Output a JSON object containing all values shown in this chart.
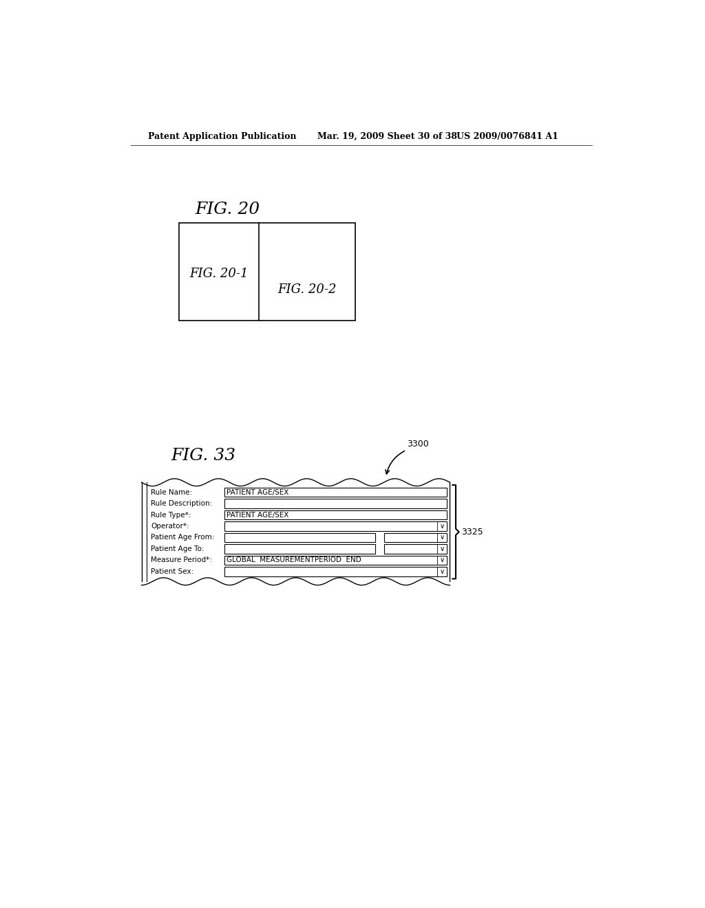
{
  "bg_color": "#ffffff",
  "header_left": "Patent Application Publication",
  "header_mid": "Mar. 19, 2009 Sheet 30 of 38",
  "header_right": "US 2009/0076841 A1",
  "fig20_label": "FIG. 20",
  "fig201_label": "FIG. 20-1",
  "fig202_label": "FIG. 20-2",
  "fig33_label": "FIG. 33",
  "ref3300_text": "3300",
  "ref3325_text": "3325",
  "form_fields": [
    {
      "label": "Rule Name:",
      "value": "PATIENT AGE/SEX",
      "has_dropdown": false,
      "split": false
    },
    {
      "label": "Rule Description:",
      "value": "",
      "has_dropdown": false,
      "split": false
    },
    {
      "label": "Rule Type*:",
      "value": "PATIENT AGE/SEX",
      "has_dropdown": false,
      "split": false
    },
    {
      "label": "Operator*:",
      "value": "",
      "has_dropdown": true,
      "split": false
    },
    {
      "label": "Patient Age From:",
      "value": "",
      "has_dropdown": true,
      "split": true
    },
    {
      "label": "Patient Age To:",
      "value": "",
      "has_dropdown": true,
      "split": true
    },
    {
      "label": "Measure Period*:",
      "value": "GLOBAL  MEASUREMENTPERIOD  END",
      "has_dropdown": true,
      "split": false
    },
    {
      "label": "Patient Sex:",
      "value": "",
      "has_dropdown": true,
      "split": false
    }
  ]
}
